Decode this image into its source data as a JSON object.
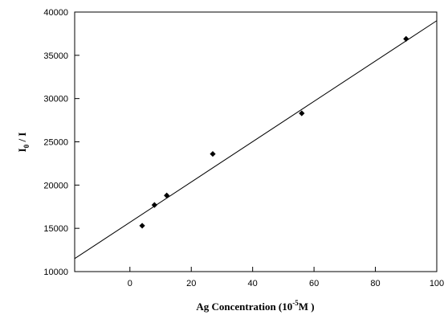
{
  "chart_data": {
    "type": "scatter",
    "xlabel": {
      "prefix": "Ag Concentration (10",
      "sup": "-5",
      "suffix": "M )"
    },
    "ylabel": {
      "prefix": "I",
      "sub": "0",
      "suffix": " / I"
    },
    "xlim": [
      -18,
      100
    ],
    "ylim": [
      10000,
      40000
    ],
    "xticks": [
      0,
      20,
      40,
      60,
      80,
      100
    ],
    "xtick_labels": [
      "0",
      "20",
      "40",
      "60",
      "80",
      "100"
    ],
    "yticks": [
      10000,
      15000,
      20000,
      25000,
      30000,
      35000,
      40000
    ],
    "ytick_labels": [
      "10000",
      "15000",
      "20000",
      "25000",
      "30000",
      "35000",
      "40000"
    ],
    "series": [
      {
        "x": [
          4,
          8,
          12,
          27,
          56,
          90
        ],
        "y": [
          15300,
          17700,
          18800,
          23600,
          28300,
          36900
        ]
      }
    ],
    "fit_line": {
      "x": [
        -18,
        100
      ],
      "y": [
        11500,
        39000
      ]
    },
    "grid": false,
    "legend": "none",
    "colors": {
      "marker": "#000000",
      "line": "#000000",
      "axis": "#000000"
    }
  }
}
